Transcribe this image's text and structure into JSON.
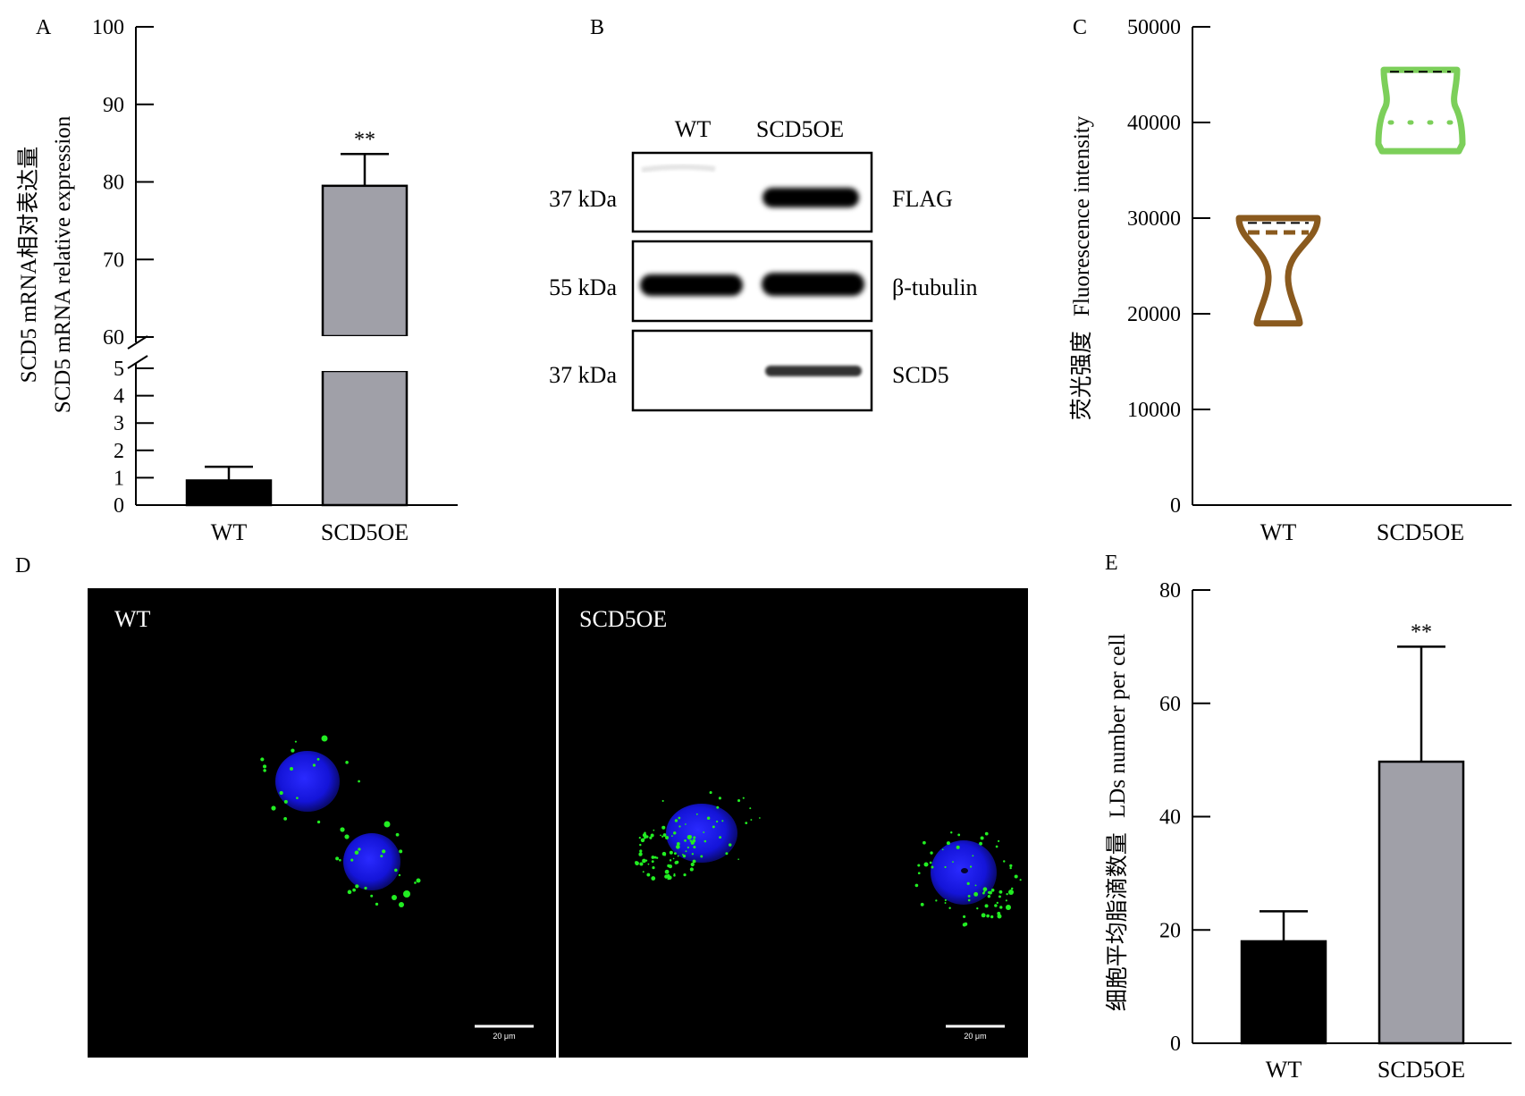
{
  "panel_letters": {
    "a": "A",
    "b": "B",
    "c": "C",
    "d": "D",
    "e": "E"
  },
  "colors": {
    "wt_bar": "#000000",
    "oe_bar": "#a0a0a8",
    "violin_wt": "#8a5a1e",
    "violin_oe": "#7ccf5a",
    "nucleus": "#1a1aff",
    "lipid_droplet": "#22ee22"
  },
  "chart_data": [
    {
      "panel": "A",
      "type": "bar",
      "categories": [
        "WT",
        "SCD5OE"
      ],
      "values": [
        0.9,
        79.5
      ],
      "error_upper": [
        1.4,
        83.6
      ],
      "significance": [
        "",
        "**"
      ],
      "ylabel_cn": "SCD5 mRNA相对表达量",
      "ylabel_en": "SCD5 mRNA relative expression",
      "axis_break": [
        5,
        60
      ],
      "lower_ylim": [
        0,
        5
      ],
      "lower_ticks": [
        "0",
        "1",
        "2",
        "3",
        "4",
        "5"
      ],
      "upper_ylim": [
        60,
        100
      ],
      "upper_ticks": [
        "60",
        "70",
        "80",
        "90",
        "100"
      ]
    },
    {
      "panel": "C",
      "type": "violin",
      "categories": [
        "WT",
        "SCD5OE"
      ],
      "ranges": [
        [
          19000,
          30000
        ],
        [
          37000,
          45500
        ]
      ],
      "quartile_upper": [
        29500,
        45300
      ],
      "median": [
        28500,
        40000
      ],
      "ylabel_cn": "荧光强度",
      "ylabel_en": "Fluorescence intensity",
      "ylim": [
        0,
        50000
      ],
      "ticks": [
        "0",
        "10000",
        "20000",
        "30000",
        "40000",
        "50000"
      ]
    },
    {
      "panel": "E",
      "type": "bar",
      "categories": [
        "WT",
        "SCD5OE"
      ],
      "values": [
        18,
        49.7
      ],
      "error_upper": [
        23.3,
        70
      ],
      "significance": [
        "",
        "**"
      ],
      "ylabel_cn": "细胞平均脂滴数量",
      "ylabel_en": "LDs number per cell",
      "ylim": [
        0,
        80
      ],
      "ticks": [
        "0",
        "20",
        "40",
        "60",
        "80"
      ]
    }
  ],
  "western_blot": {
    "lanes": [
      "WT",
      "SCD5OE"
    ],
    "rows": [
      {
        "size": "37 kDa",
        "target": "FLAG",
        "intensity": [
          0.0,
          1.0
        ]
      },
      {
        "size": "55 kDa",
        "target": "β-tubulin",
        "intensity": [
          1.0,
          1.0
        ]
      },
      {
        "size": "37 kDa",
        "target": "SCD5",
        "intensity": [
          0.0,
          0.8
        ]
      }
    ]
  },
  "microscopy": {
    "panels": [
      {
        "label": "WT",
        "scale_bar": "20 μm"
      },
      {
        "label": "SCD5OE",
        "scale_bar": "20 μm"
      }
    ]
  }
}
